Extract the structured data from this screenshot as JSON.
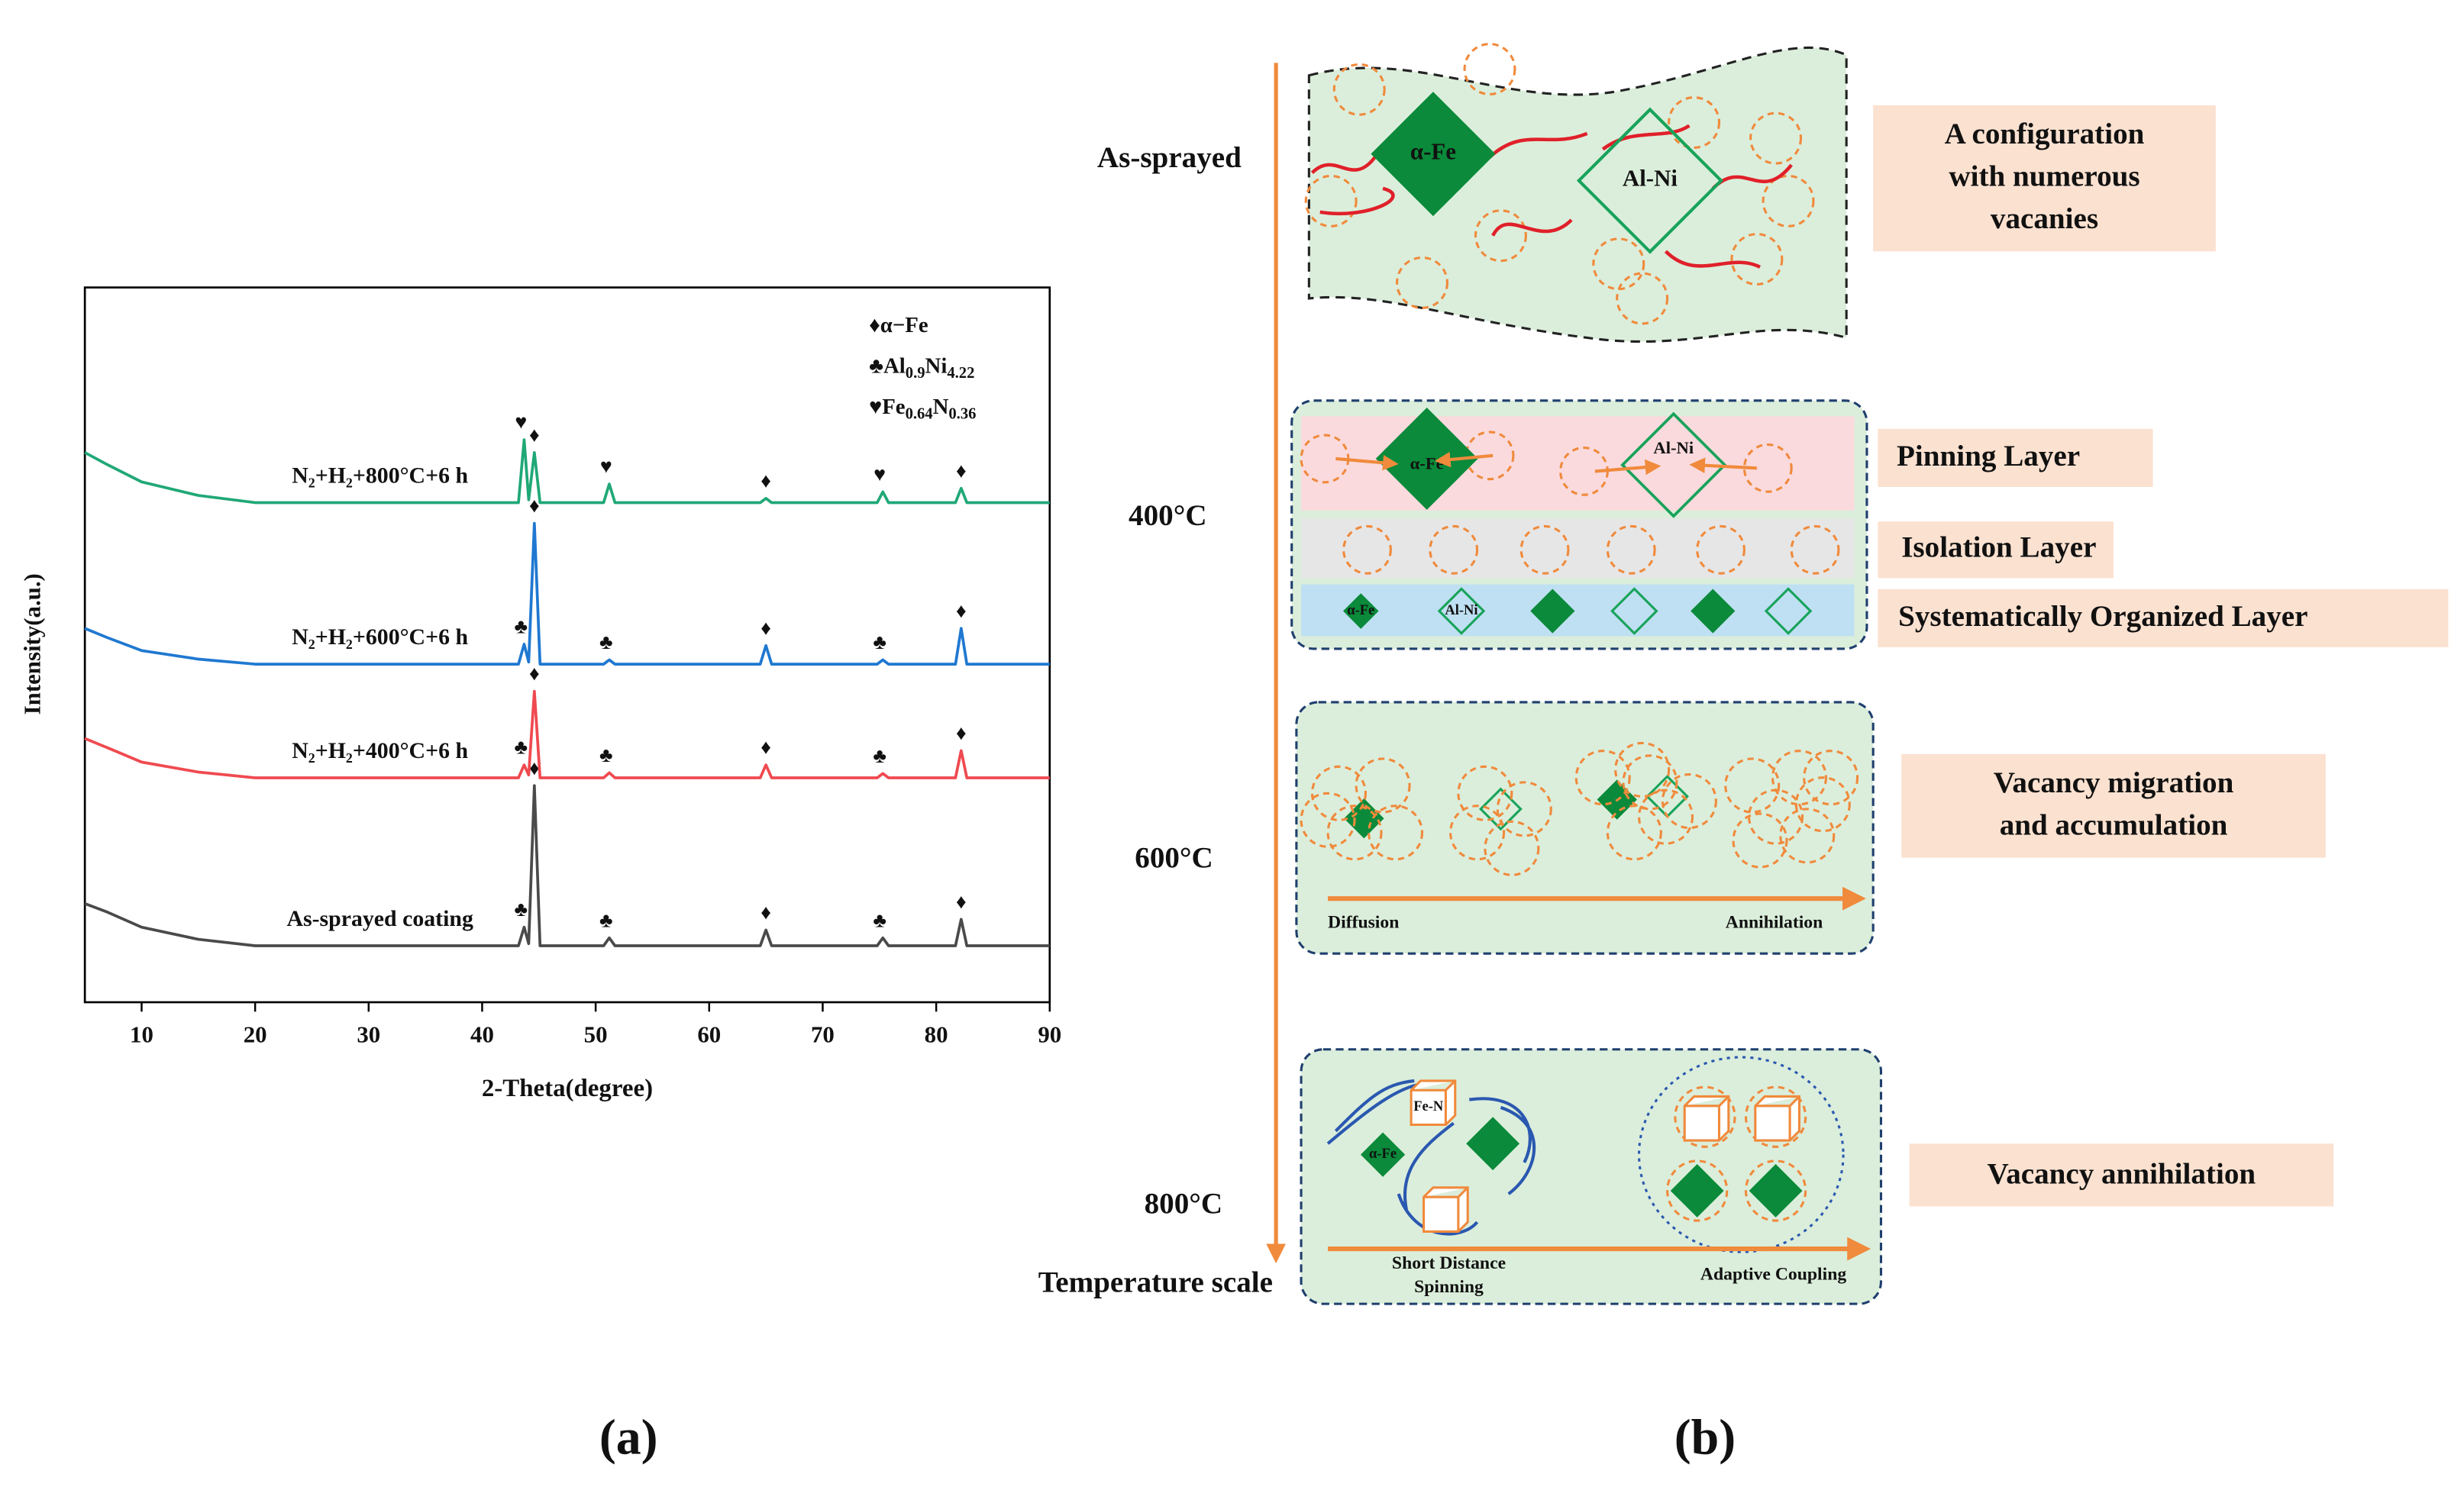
{
  "chart_data": {
    "type": "line",
    "xlabel": "2-Theta(degree)",
    "ylabel": "Intensity(a.u.)",
    "xlim": [
      5,
      90
    ],
    "xticks": [
      10,
      20,
      30,
      40,
      50,
      60,
      70,
      80,
      90
    ],
    "ylim": [
      0,
      100
    ],
    "legend": [
      [
        "♦α−Fe"
      ],
      [
        "♣Al",
        "0.9",
        "Ni",
        "4.22"
      ],
      [
        "♥Fe",
        "0.64",
        "N",
        "0.36"
      ]
    ],
    "x": [
      5,
      7,
      10,
      15,
      20,
      30,
      40,
      43.2,
      43.7,
      44.1,
      44.6,
      45.1,
      50.7,
      51.2,
      51.7,
      64.5,
      65,
      65.5,
      74.8,
      75.3,
      75.8,
      81.7,
      82.2,
      82.7,
      90
    ],
    "series": [
      {
        "name": "As-sprayed coating",
        "color": "#4a4a4a",
        "values": [
          13.8,
          12.6,
          10.5,
          8.8,
          7.9,
          7.9,
          7.9,
          7.9,
          10.5,
          8.2,
          30.3,
          7.9,
          7.9,
          9,
          7.9,
          7.9,
          10.1,
          7.9,
          7.9,
          9,
          7.9,
          7.9,
          11.6,
          7.9,
          7.9
        ],
        "markers": [
          {
            "x": 43.7,
            "symbol": "♣"
          },
          {
            "x": 44.6,
            "symbol": "♦"
          },
          {
            "x": 51.2,
            "symbol": "♣"
          },
          {
            "x": 65,
            "symbol": "♦"
          },
          {
            "x": 75.3,
            "symbol": "♣"
          },
          {
            "x": 82.2,
            "symbol": "♦"
          }
        ]
      },
      {
        "name": "N₂+H₂+400°C+6 h",
        "color": "#ef4a50",
        "values": [
          36.9,
          35.6,
          33.6,
          32.2,
          31.4,
          31.4,
          31.4,
          31.4,
          33.2,
          31.8,
          43.5,
          31.4,
          31.4,
          32.1,
          31.4,
          31.4,
          33.2,
          31.4,
          31.4,
          32,
          31.4,
          31.4,
          35.2,
          31.4,
          31.4
        ],
        "markers": [
          {
            "x": 43.7,
            "symbol": "♣"
          },
          {
            "x": 44.6,
            "symbol": "♦"
          },
          {
            "x": 51.2,
            "symbol": "♣"
          },
          {
            "x": 65,
            "symbol": "♦"
          },
          {
            "x": 75.3,
            "symbol": "♣"
          },
          {
            "x": 82.2,
            "symbol": "♦"
          }
        ]
      },
      {
        "name": "N₂+H₂+600°C+6 h",
        "color": "#1f78d1",
        "values": [
          52.3,
          51,
          49.2,
          48,
          47.3,
          47.3,
          47.3,
          47.3,
          50.1,
          47.6,
          67,
          47.3,
          47.3,
          47.9,
          47.3,
          47.3,
          49.9,
          47.3,
          47.3,
          47.9,
          47.3,
          47.3,
          52.3,
          47.3,
          47.3
        ],
        "markers": [
          {
            "x": 43.7,
            "symbol": "♣"
          },
          {
            "x": 44.6,
            "symbol": "♦"
          },
          {
            "x": 51.2,
            "symbol": "♣"
          },
          {
            "x": 65,
            "symbol": "♦"
          },
          {
            "x": 75.3,
            "symbol": "♣"
          },
          {
            "x": 82.2,
            "symbol": "♦"
          }
        ]
      },
      {
        "name": "N₂+H₂+800°C+6 h",
        "color": "#20a877",
        "values": [
          76.9,
          75.2,
          72.8,
          70.9,
          69.9,
          69.9,
          69.9,
          69.9,
          78.7,
          70.3,
          76.9,
          69.9,
          69.9,
          72.5,
          69.9,
          69.9,
          70.5,
          69.9,
          69.9,
          71.4,
          69.9,
          69.9,
          71.9,
          69.9,
          69.9
        ],
        "markers": [
          {
            "x": 43.7,
            "symbol": "♥"
          },
          {
            "x": 44.6,
            "symbol": "♦"
          },
          {
            "x": 51.2,
            "symbol": "♥"
          },
          {
            "x": 65,
            "symbol": "♦"
          },
          {
            "x": 75.3,
            "symbol": "♥"
          },
          {
            "x": 82.2,
            "symbol": "♦"
          }
        ]
      }
    ]
  },
  "schematic": {
    "stages": [
      "As-sprayed",
      "400°C",
      "600°C",
      "800°C"
    ],
    "scale_label": "Temperature scale",
    "notes": [
      [
        "A configuration",
        "with numerous",
        "vacanies"
      ],
      [
        "Pinning Layer"
      ],
      [
        "Isolation Layer"
      ],
      [
        "Systematically Organized Layer"
      ],
      [
        "Vacancy migration",
        "and accumulation"
      ],
      [
        "Vacancy annihilation"
      ]
    ],
    "labels": {
      "fe1": "α-Fe",
      "alni1": "Al-Ni",
      "fe2": "α-Fe",
      "alni2": "Al-Ni",
      "fe3": "α-Fe",
      "alni3": "Al-Ni",
      "diffusion": "Diffusion",
      "annihilation": "Annihilation",
      "fen": "Fe-N",
      "fe4": "α-Fe",
      "short": [
        "Short Distance",
        "Spinning"
      ],
      "adaptive": "Adaptive Coupling"
    }
  },
  "panel_labels": [
    "(a)",
    "(b)"
  ]
}
